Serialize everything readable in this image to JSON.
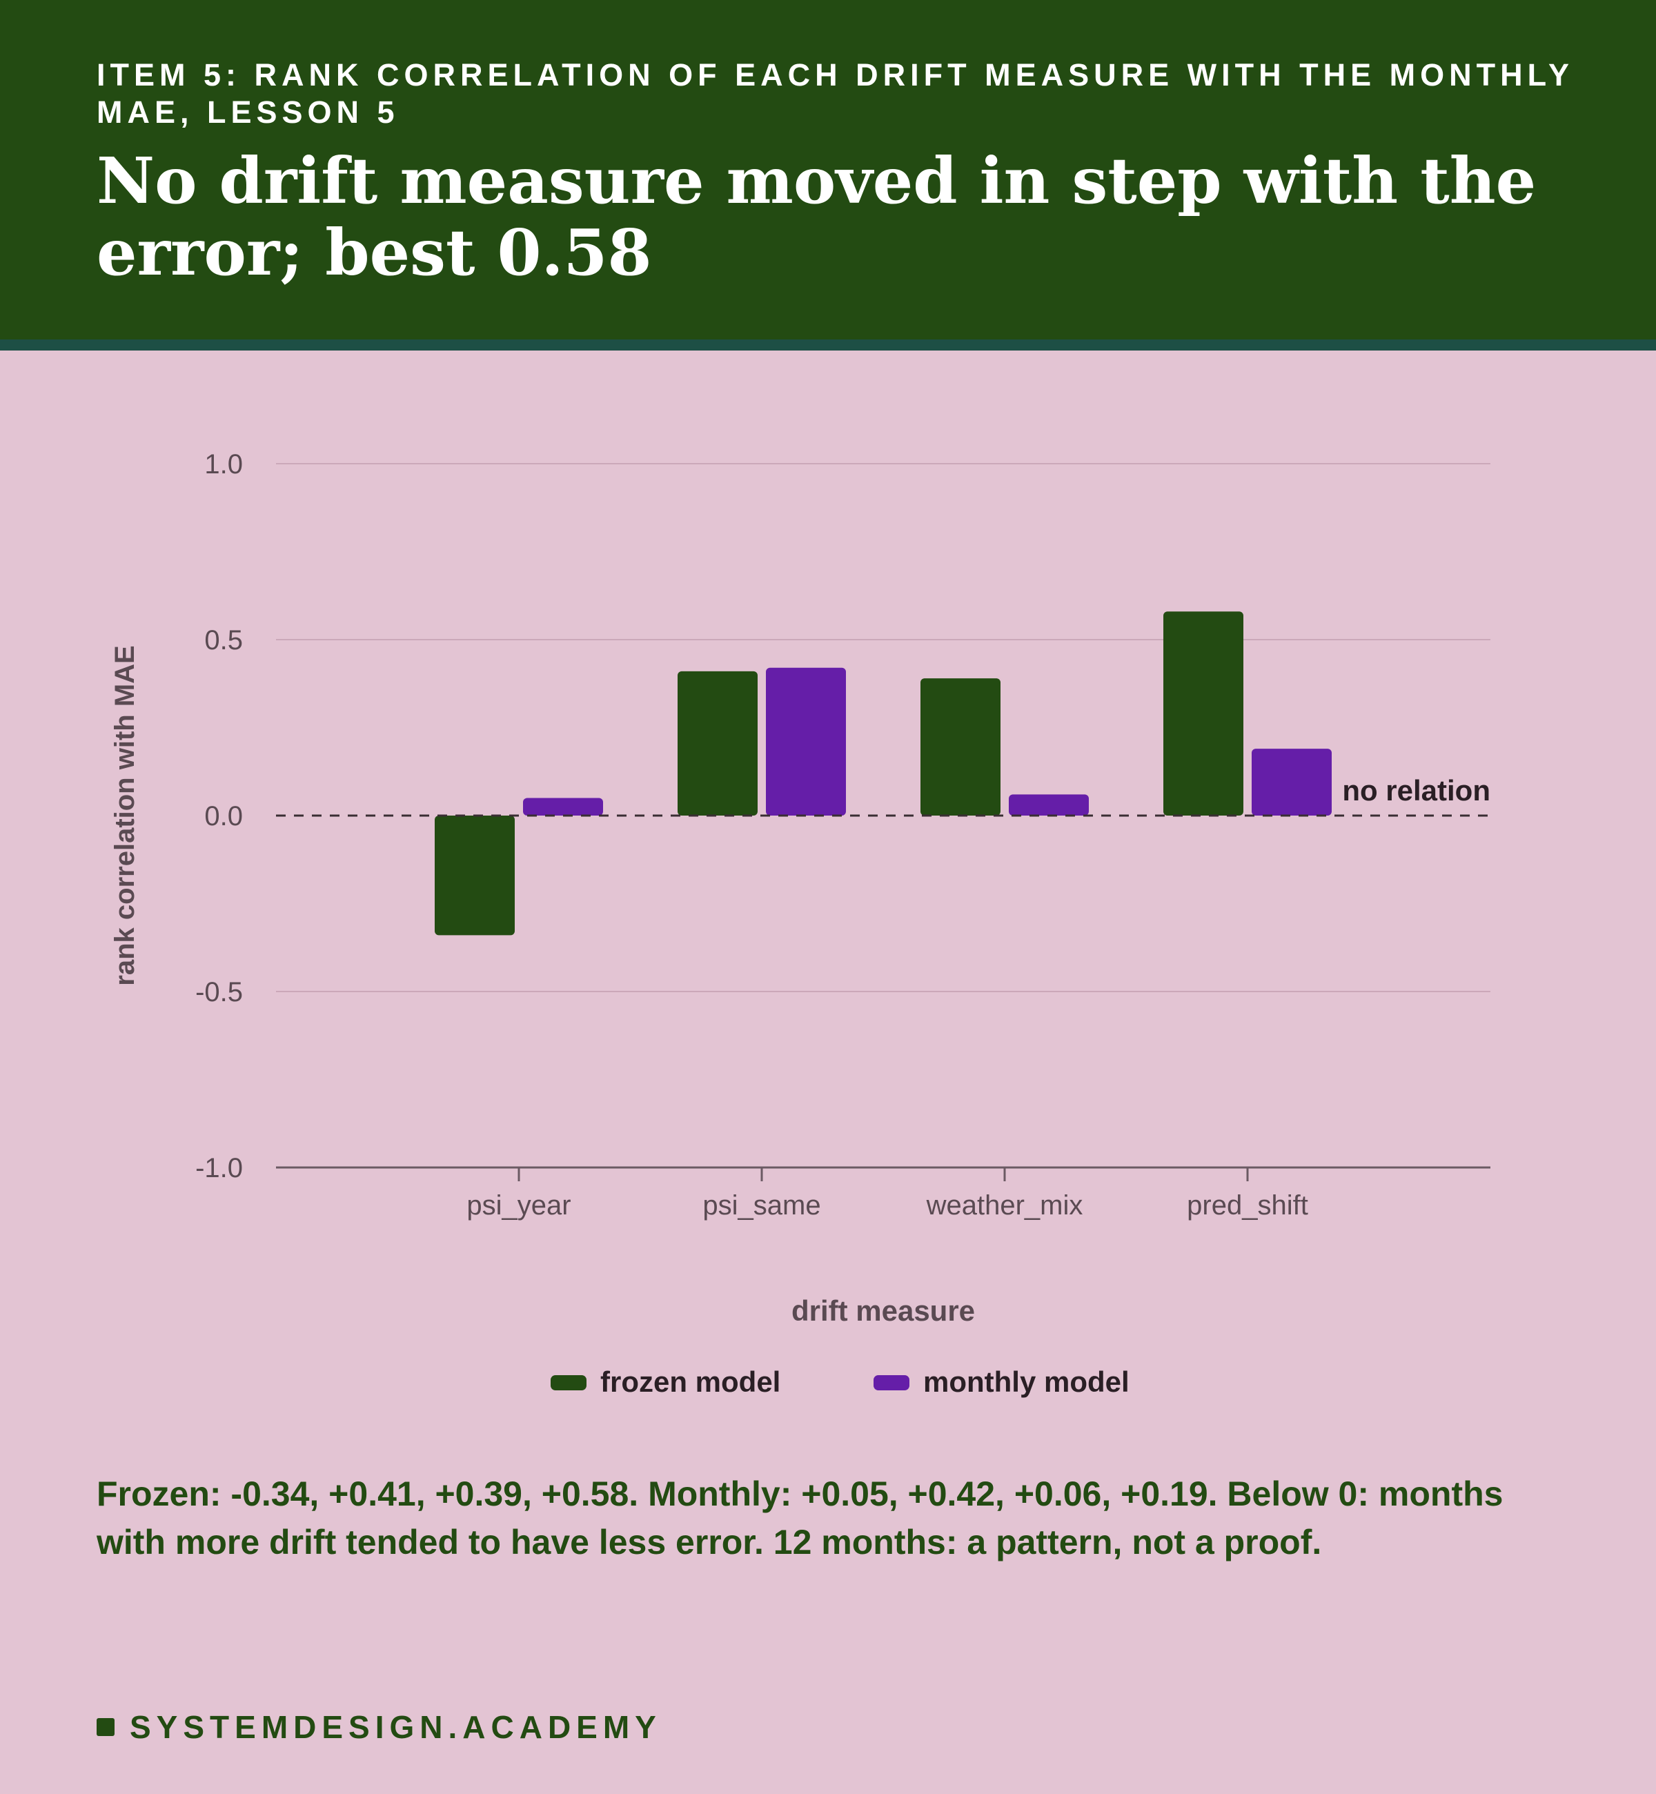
{
  "header": {
    "kicker": "ITEM 5: RANK CORRELATION OF EACH DRIFT MEASURE WITH THE MONTHLY MAE, LESSON 5",
    "headline": "No drift measure moved in step with the error; best 0.58"
  },
  "chart_data": {
    "type": "bar",
    "categories": [
      "psi_year",
      "psi_same",
      "weather_mix",
      "pred_shift"
    ],
    "series": [
      {
        "name": "frozen model",
        "values": [
          -0.34,
          0.41,
          0.39,
          0.58
        ],
        "color": "#234b12"
      },
      {
        "name": "monthly model",
        "values": [
          0.05,
          0.42,
          0.06,
          0.19
        ],
        "color": "#651ea8"
      }
    ],
    "xlabel": "drift measure",
    "ylabel": "rank correlation with MAE",
    "ylim": [
      -1.0,
      1.0
    ],
    "yticks": [
      "1.0",
      "0.5",
      "0.0",
      "-0.5",
      "-1.0"
    ],
    "ytick_values": [
      1.0,
      0.5,
      0.0,
      -0.5,
      -1.0
    ],
    "reference_line": {
      "value": 0.0,
      "label": "no relation",
      "style": "dashed"
    },
    "grid": true,
    "legend_position": "bottom-center"
  },
  "caption": "Frozen: -0.34, +0.41, +0.39, +0.58. Monthly: +0.05, +0.42, +0.06, +0.19. Below 0: months with more drift tended to have less error. 12 months: a pattern, not a proof.",
  "brand": "SYSTEMDESIGN.ACADEMY"
}
